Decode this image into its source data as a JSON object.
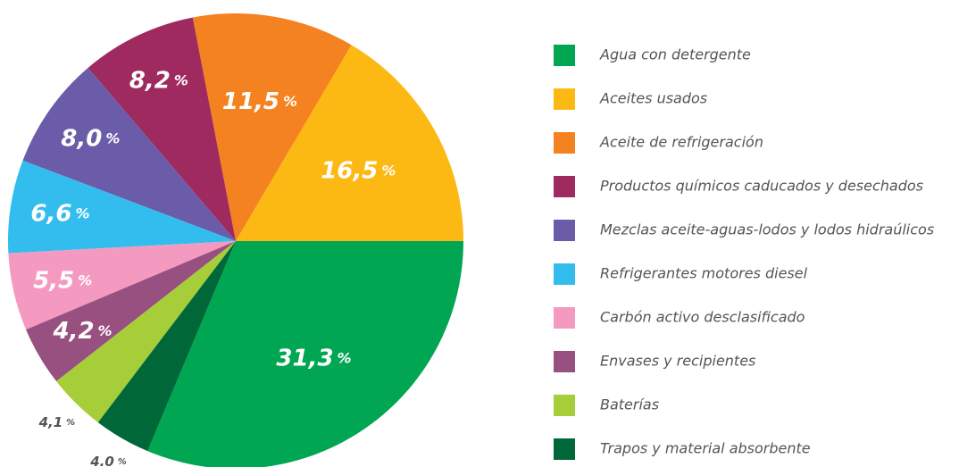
{
  "chart_data": {
    "type": "pie",
    "categories": [
      "Agua con detergente",
      "Aceites usados",
      "Aceite de refrigeración",
      "Productos químicos caducados y desechados",
      "Mezclas aceite-aguas-lodos y lodos hidraúlicos",
      "Refrigerantes motores diesel",
      "Carbón activo desclasificado",
      "Envases y recipientes",
      "Baterías",
      "Trapos y material absorbente"
    ],
    "values": [
      31.3,
      16.5,
      11.5,
      8.2,
      8.0,
      6.6,
      5.5,
      4.2,
      4.1,
      4.0
    ],
    "value_labels": [
      "31,3",
      "16,5",
      "11,5",
      "8,2",
      "8,0",
      "6,6",
      "5,5",
      "4,2",
      "4,1",
      "4.0"
    ],
    "label_unit": "%",
    "colors": [
      "#00a651",
      "#fdb913",
      "#f58220",
      "#9e2a5f",
      "#6a5ca8",
      "#33bdef",
      "#f49ac1",
      "#985080",
      "#a6ce39",
      "#006838"
    ],
    "legend": "right"
  }
}
